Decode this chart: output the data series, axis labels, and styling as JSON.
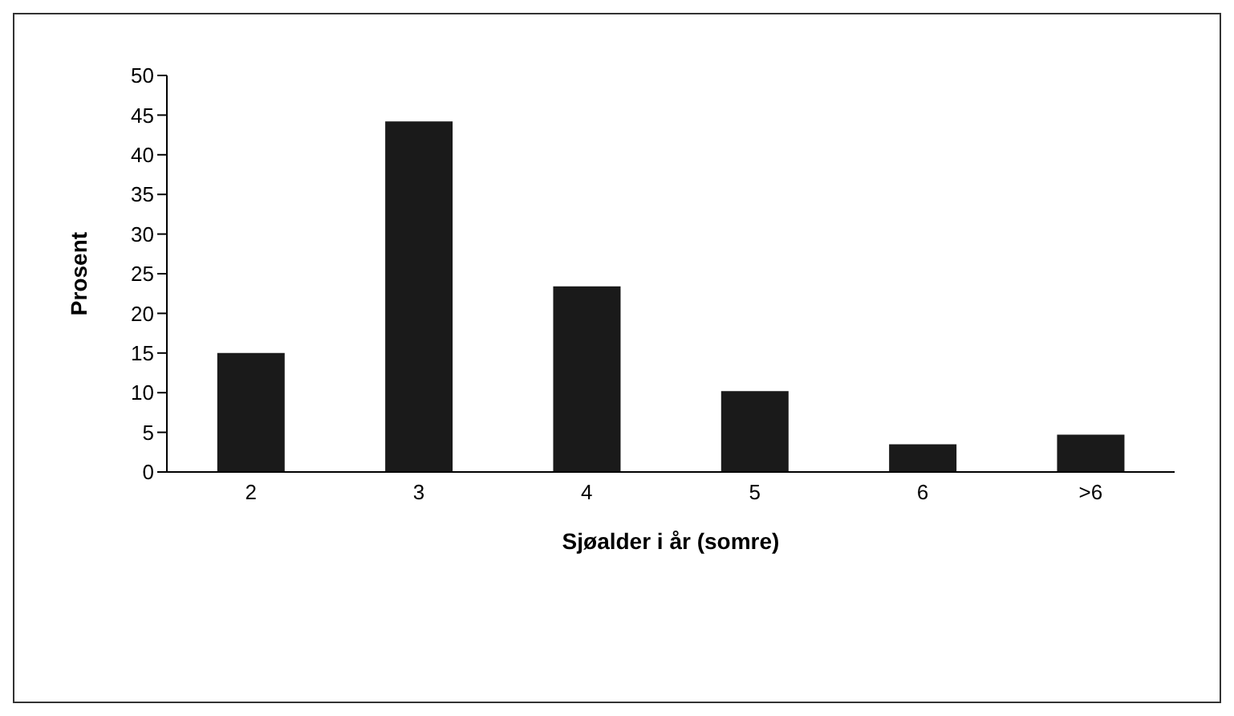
{
  "chart_data": {
    "type": "bar",
    "xlabel": "Sjøalder i år (somre)",
    "ylabel": "Prosent",
    "categories": [
      "2",
      "3",
      "4",
      "5",
      "6",
      ">6"
    ],
    "values": [
      15,
      44.2,
      23.4,
      10.2,
      3.5,
      4.7
    ],
    "color": "#1a1a1a",
    "ylim": [
      0,
      50
    ],
    "yticks": [
      0,
      5,
      10,
      15,
      20,
      25,
      30,
      35,
      40,
      45,
      50
    ],
    "grid": false,
    "legend": false
  }
}
